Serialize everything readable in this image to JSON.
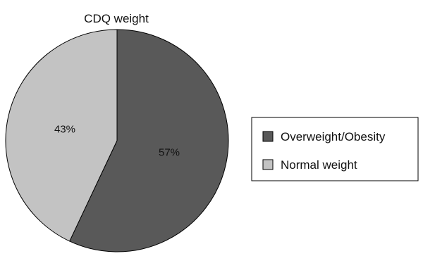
{
  "chart_data": {
    "type": "pie",
    "title": "CDQ weight",
    "slices": [
      {
        "label": "Overweight/Obesity",
        "value": 57,
        "display": "57%",
        "color": "#595959"
      },
      {
        "label": "Normal weight",
        "value": 43,
        "display": "43%",
        "color": "#c3c3c3"
      }
    ],
    "start_angle": "12 o'clock",
    "direction": "clockwise",
    "legend_position": "right",
    "grid": false
  }
}
